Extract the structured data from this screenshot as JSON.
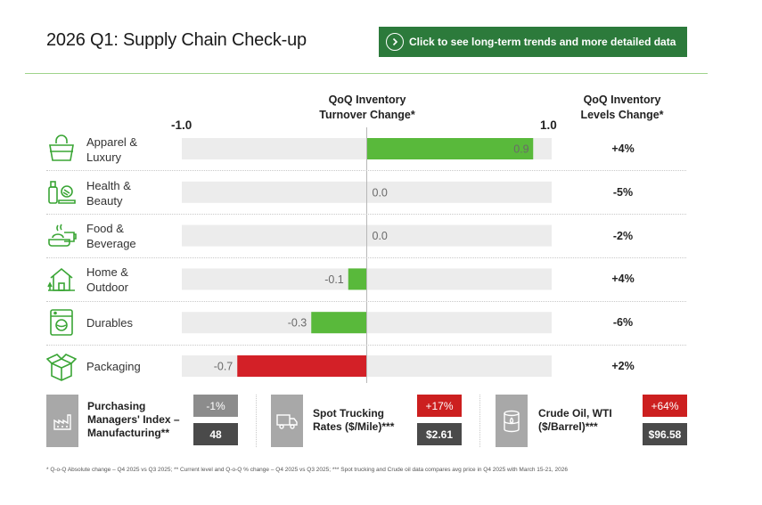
{
  "header": {
    "title": "2026 Q1: Supply Chain Check-up",
    "cta_label": "Click to see long-term trends and more detailed data"
  },
  "columns": {
    "turnover_header": "QoQ Inventory Turnover Change*",
    "turnover_line1": "QoQ Inventory",
    "turnover_line2": "Turnover Change*",
    "levels_line1": "QoQ Inventory",
    "levels_line2": "Levels Change*"
  },
  "chart_data": {
    "type": "bar",
    "orientation": "horizontal",
    "title": "QoQ Inventory Turnover Change*",
    "xlim": [
      -1.0,
      1.0
    ],
    "axis_min_label": "-1.0",
    "axis_max_label": "1.0",
    "categories": [
      "Apparel & Luxury",
      "Health & Beauty",
      "Food & Beverage",
      "Home & Outdoor",
      "Durables",
      "Packaging"
    ],
    "values": [
      0.9,
      0.0,
      0.0,
      -0.1,
      -0.3,
      -0.7
    ],
    "value_labels": [
      "0.9",
      "0.0",
      "0.0",
      "-0.1",
      "-0.3",
      "-0.7"
    ],
    "bar_colors": [
      "#59b93b",
      "#59b93b",
      "#59b93b",
      "#59b93b",
      "#59b93b",
      "#d32027"
    ],
    "track_color": "#ececec"
  },
  "rows": [
    {
      "line1": "Apparel &",
      "line2": "Luxury",
      "icon": "shopping-bag-icon",
      "levels_change": "+4%"
    },
    {
      "line1": "Health &",
      "line2": "Beauty",
      "icon": "cosmetics-icon",
      "levels_change": "-5%"
    },
    {
      "line1": "Food &",
      "line2": "Beverage",
      "icon": "food-icon",
      "levels_change": "-2%"
    },
    {
      "line1": "Home &",
      "line2": "Outdoor",
      "icon": "house-icon",
      "levels_change": "+4%"
    },
    {
      "line1": "Durables",
      "line2": "",
      "icon": "washing-machine-icon",
      "levels_change": "-6%"
    },
    {
      "line1": "Packaging",
      "line2": "",
      "icon": "package-box-icon",
      "levels_change": "+2%"
    }
  ],
  "indicators": [
    {
      "line1": "Purchasing",
      "line2": "Managers' Index –",
      "line3": "Manufacturing**",
      "change": "-1%",
      "level": "48",
      "change_color": "#8c8c8c",
      "icon": "factory-icon"
    },
    {
      "line1": "Spot Trucking",
      "line2": "Rates ($/Mile)***",
      "line3": "",
      "change": "+17%",
      "level": "$2.61",
      "change_color": "#cc1f1f",
      "icon": "truck-icon"
    },
    {
      "line1": "Crude Oil, WTI",
      "line2": "($/Barrel)***",
      "line3": "",
      "change": "+64%",
      "level": "$96.58",
      "change_color": "#cc1f1f",
      "icon": "oil-barrel-icon"
    }
  ],
  "footnote": "* Q-o-Q Absolute change – Q4 2025 vs Q3 2025; ** Current level and Q-o-Q % change – Q4 2025 vs Q3 2025; *** Spot trucking and Crude oil data compares avg price in Q4 2025 with March 15-21, 2026"
}
